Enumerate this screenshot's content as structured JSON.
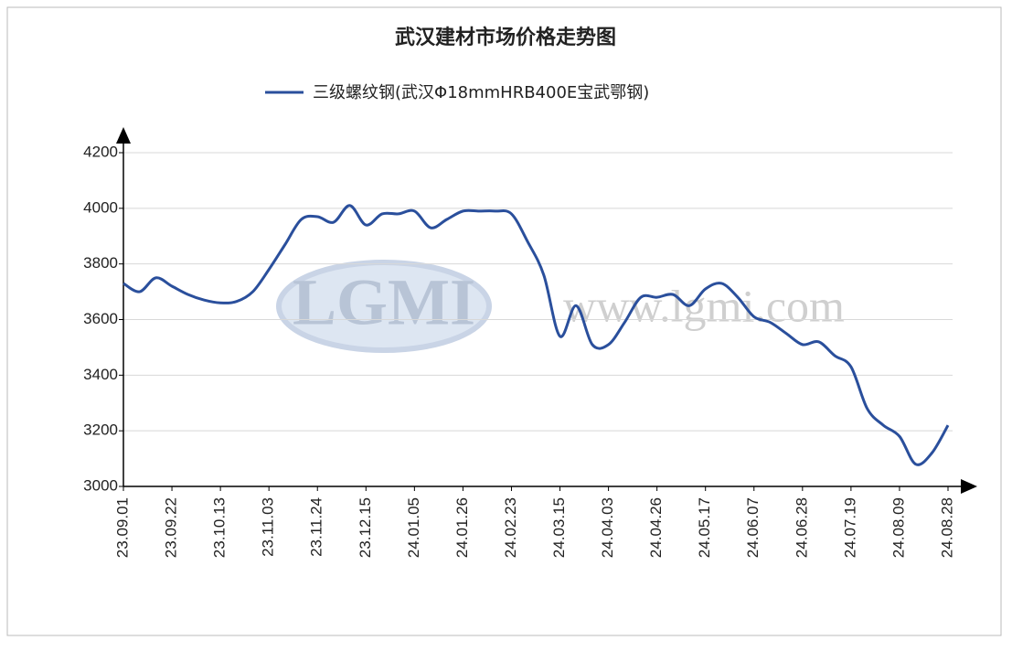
{
  "chart_data": {
    "type": "line",
    "title": "武汉建材市场价格走势图",
    "watermark": {
      "logo": "LGMI",
      "url": "www.lgmi.com"
    },
    "categories": [
      "23.09.01",
      null,
      null,
      "23.09.22",
      null,
      null,
      "23.10.13",
      null,
      null,
      "23.11.03",
      null,
      null,
      "23.11.24",
      null,
      null,
      "23.12.15",
      null,
      null,
      "24.01.05",
      null,
      null,
      "24.01.26",
      null,
      null,
      "24.02.23",
      null,
      null,
      "24.03.15",
      null,
      null,
      "24.04.03",
      null,
      null,
      "24.04.26",
      null,
      null,
      "24.05.17",
      null,
      null,
      "24.06.07",
      null,
      null,
      "24.06.28",
      null,
      null,
      "24.07.19",
      null,
      null,
      "24.08.09",
      null,
      null,
      "24.08.28"
    ],
    "series": [
      {
        "name": "三级螺纹钢(武汉Φ18mmHRB400E宝武鄂钢)",
        "color": "#2a4f9c",
        "values": [
          3730,
          3700,
          3750,
          3720,
          3690,
          3670,
          3660,
          3665,
          3700,
          3780,
          3870,
          3960,
          3970,
          3950,
          4010,
          3940,
          3980,
          3980,
          3990,
          3930,
          3960,
          3990,
          3990,
          3990,
          3980,
          3880,
          3760,
          3540,
          3650,
          3510,
          3510,
          3590,
          3680,
          3680,
          3690,
          3650,
          3710,
          3730,
          3680,
          3610,
          3590,
          3550,
          3510,
          3520,
          3470,
          3430,
          3280,
          3220,
          3180,
          3080,
          3120,
          3220
        ]
      }
    ],
    "ylim": [
      3000,
      4200
    ],
    "yticks": [
      3000,
      3200,
      3400,
      3600,
      3800,
      4000,
      4200
    ],
    "grid": true
  }
}
